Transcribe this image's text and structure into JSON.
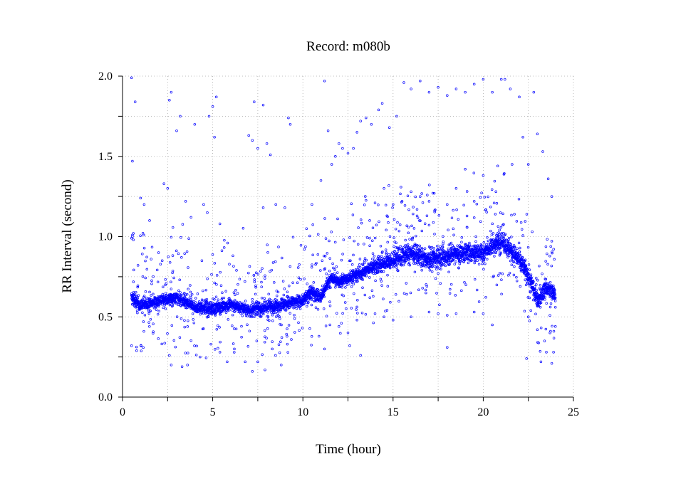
{
  "chart_data": {
    "type": "scatter",
    "title": "Record:  m080b",
    "xlabel": "Time (hour)",
    "ylabel": "RR Interval (second)",
    "xlim": [
      0,
      25
    ],
    "ylim": [
      0.0,
      2.0
    ],
    "xticks": [
      0,
      5,
      10,
      15,
      20,
      25
    ],
    "xtick_labels": [
      "0",
      "5",
      "10",
      "15",
      "20",
      "25"
    ],
    "yticks": [
      0.0,
      0.5,
      1.0,
      1.5,
      2.0
    ],
    "ytick_labels": [
      "0.0",
      "0.5",
      "1.0",
      "1.5",
      "2.0"
    ],
    "grid": true,
    "marker_color": "#0000ff",
    "baseline_trend": {
      "x": [
        0.5,
        1.0,
        2.0,
        3.0,
        4.0,
        5.0,
        6.0,
        7.0,
        7.5,
        8.0,
        9.0,
        10.0,
        10.5,
        11.0,
        11.5,
        12.0,
        13.0,
        14.0,
        15.0,
        16.0,
        17.0,
        18.0,
        19.0,
        20.0,
        21.0,
        21.5,
        22.0,
        22.5,
        23.0,
        23.5,
        24.0
      ],
      "y": [
        0.62,
        0.57,
        0.6,
        0.62,
        0.56,
        0.55,
        0.58,
        0.54,
        0.55,
        0.56,
        0.58,
        0.6,
        0.66,
        0.62,
        0.74,
        0.72,
        0.76,
        0.82,
        0.85,
        0.9,
        0.86,
        0.88,
        0.9,
        0.9,
        0.98,
        0.92,
        0.85,
        0.76,
        0.6,
        0.68,
        0.64
      ]
    },
    "scattered_points": [
      [
        0.5,
        0.99
      ],
      [
        0.55,
        1.01
      ],
      [
        0.6,
        0.98
      ],
      [
        0.6,
        1.02
      ],
      [
        0.55,
        1.0
      ],
      [
        0.5,
        1.99
      ],
      [
        0.7,
        1.84
      ],
      [
        0.55,
        1.47
      ],
      [
        0.5,
        0.32
      ],
      [
        1.0,
        1.24
      ],
      [
        1.2,
        1.2
      ],
      [
        1.5,
        1.1
      ],
      [
        2.0,
        0.9
      ],
      [
        2.2,
        0.85
      ],
      [
        2.3,
        1.33
      ],
      [
        2.5,
        1.3
      ],
      [
        2.6,
        1.85
      ],
      [
        2.7,
        1.9
      ],
      [
        3.0,
        1.66
      ],
      [
        3.2,
        1.75
      ],
      [
        3.5,
        1.22
      ],
      [
        3.8,
        1.12
      ],
      [
        4.0,
        1.7
      ],
      [
        4.5,
        1.2
      ],
      [
        4.8,
        1.75
      ],
      [
        5.0,
        1.81
      ],
      [
        5.2,
        1.87
      ],
      [
        5.1,
        1.62
      ],
      [
        5.4,
        1.08
      ],
      [
        4.7,
        1.15
      ],
      [
        2.6,
        0.26
      ],
      [
        2.7,
        0.2
      ],
      [
        3.3,
        0.19
      ],
      [
        3.6,
        0.2
      ],
      [
        4.3,
        0.25
      ],
      [
        4.9,
        0.33
      ],
      [
        5.4,
        0.28
      ],
      [
        5.8,
        0.22
      ],
      [
        6.2,
        0.3
      ],
      [
        6.8,
        0.22
      ],
      [
        7.0,
        1.63
      ],
      [
        7.2,
        1.6
      ],
      [
        7.3,
        1.84
      ],
      [
        7.5,
        1.55
      ],
      [
        7.8,
        1.82
      ],
      [
        8.0,
        1.58
      ],
      [
        8.2,
        1.51
      ],
      [
        9.2,
        1.74
      ],
      [
        9.3,
        1.7
      ],
      [
        7.8,
        1.18
      ],
      [
        8.5,
        1.2
      ],
      [
        9.0,
        1.18
      ],
      [
        7.2,
        0.16
      ],
      [
        7.5,
        0.22
      ],
      [
        7.9,
        0.17
      ],
      [
        8.3,
        0.3
      ],
      [
        8.8,
        0.2
      ],
      [
        10.2,
        1.05
      ],
      [
        10.5,
        1.2
      ],
      [
        11.0,
        1.35
      ],
      [
        11.2,
        1.97
      ],
      [
        11.4,
        1.66
      ],
      [
        11.6,
        1.45
      ],
      [
        11.8,
        1.5
      ],
      [
        12.0,
        1.58
      ],
      [
        12.2,
        1.55
      ],
      [
        12.5,
        1.52
      ],
      [
        12.8,
        1.55
      ],
      [
        13.0,
        1.65
      ],
      [
        13.2,
        1.72
      ],
      [
        13.5,
        1.74
      ],
      [
        13.8,
        1.7
      ],
      [
        14.2,
        1.79
      ],
      [
        14.4,
        1.83
      ],
      [
        14.8,
        1.68
      ],
      [
        15.2,
        1.75
      ],
      [
        15.6,
        1.96
      ],
      [
        16.0,
        1.92
      ],
      [
        16.5,
        1.97
      ],
      [
        17.0,
        1.9
      ],
      [
        17.5,
        1.93
      ],
      [
        18.0,
        1.88
      ],
      [
        18.5,
        1.92
      ],
      [
        19.0,
        1.9
      ],
      [
        19.5,
        1.95
      ],
      [
        20.0,
        1.98
      ],
      [
        20.5,
        1.9
      ],
      [
        21.0,
        1.98
      ],
      [
        21.2,
        1.98
      ],
      [
        21.5,
        1.92
      ],
      [
        22.0,
        1.87
      ],
      [
        22.8,
        1.9
      ],
      [
        19.0,
        1.42
      ],
      [
        20.0,
        1.38
      ],
      [
        20.8,
        1.44
      ],
      [
        21.6,
        1.45
      ],
      [
        22.2,
        1.62
      ],
      [
        22.5,
        1.45
      ],
      [
        23.0,
        1.64
      ],
      [
        23.3,
        1.53
      ],
      [
        23.6,
        1.36
      ],
      [
        23.8,
        1.25
      ],
      [
        14.0,
        1.21
      ],
      [
        14.5,
        1.3
      ],
      [
        15.0,
        1.2
      ],
      [
        15.5,
        1.22
      ],
      [
        16.0,
        1.28
      ],
      [
        16.5,
        1.25
      ],
      [
        17.0,
        1.22
      ],
      [
        18.0,
        1.2
      ],
      [
        18.5,
        1.3
      ],
      [
        19.5,
        1.22
      ],
      [
        11.5,
        0.45
      ],
      [
        12.0,
        0.44
      ],
      [
        12.5,
        0.4
      ],
      [
        13.0,
        0.48
      ],
      [
        14.0,
        0.52
      ],
      [
        14.5,
        0.5
      ],
      [
        15.0,
        0.48
      ],
      [
        16.0,
        0.5
      ],
      [
        17.0,
        0.53
      ],
      [
        17.5,
        0.52
      ],
      [
        18.0,
        0.51
      ],
      [
        18.5,
        0.52
      ],
      [
        19.5,
        0.53
      ],
      [
        20.0,
        0.52
      ],
      [
        20.5,
        0.45
      ],
      [
        22.5,
        0.5
      ],
      [
        23.0,
        0.42
      ],
      [
        23.4,
        0.35
      ],
      [
        23.7,
        0.4
      ],
      [
        23.9,
        0.28
      ],
      [
        11.2,
        0.3
      ],
      [
        12.6,
        0.32
      ],
      [
        13.2,
        0.26
      ],
      [
        18.0,
        0.31
      ],
      [
        22.4,
        0.24
      ],
      [
        23.2,
        0.22
      ],
      [
        23.5,
        0.28
      ],
      [
        23.8,
        0.21
      ],
      [
        24.0,
        0.44
      ],
      [
        24.0,
        0.56
      ]
    ]
  }
}
